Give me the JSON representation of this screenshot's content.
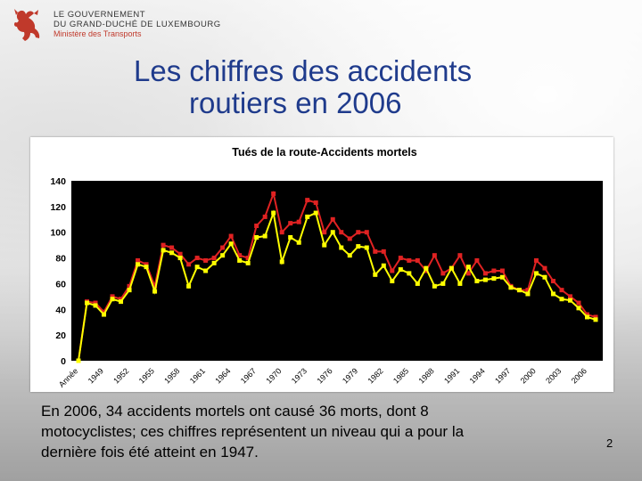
{
  "header": {
    "gov_line1": "LE GOUVERNEMENT",
    "gov_line2": "DU GRAND-DUCHÉ DE LUXEMBOURG",
    "ministry": "Ministère des Transports"
  },
  "slide": {
    "title_line1": "Les chiffres des accidents",
    "title_line2": "routiers en 2006",
    "caption_line1": "En 2006, 34 accidents mortels ont causé 36 morts, dont 8",
    "caption_line2": "motocyclistes; ces chiffres représentent un niveau qui a pour la",
    "caption_line3": "dernière fois été atteint en 1947.",
    "page_number": "2"
  },
  "colors": {
    "title": "#1f3b8c",
    "plot_background": "#000000",
    "killed_series": "#e02222",
    "accidents_series": "#ffff00"
  },
  "chart_data": {
    "type": "line",
    "title": "Tués de la route-Accidents mortels",
    "xlabel": "",
    "ylabel": "",
    "ylim": [
      0,
      140
    ],
    "yticks": [
      0,
      20,
      40,
      60,
      80,
      100,
      120,
      140
    ],
    "first_category_label": "Année",
    "x": [
      1946,
      1947,
      1948,
      1949,
      1950,
      1951,
      1952,
      1953,
      1954,
      1955,
      1956,
      1957,
      1958,
      1959,
      1960,
      1961,
      1962,
      1963,
      1964,
      1965,
      1966,
      1967,
      1968,
      1969,
      1970,
      1971,
      1972,
      1973,
      1974,
      1975,
      1976,
      1977,
      1978,
      1979,
      1980,
      1981,
      1982,
      1983,
      1984,
      1985,
      1986,
      1987,
      1988,
      1989,
      1990,
      1991,
      1992,
      1993,
      1994,
      1995,
      1996,
      1997,
      1998,
      1999,
      2000,
      2001,
      2002,
      2003,
      2004,
      2005,
      2006,
      2007
    ],
    "xtick_labels": [
      "Année",
      "1949",
      "1952",
      "1955",
      "1958",
      "1961",
      "1964",
      "1967",
      "1970",
      "1973",
      "1976",
      "1979",
      "1982",
      "1985",
      "1988",
      "1991",
      "1994",
      "1997",
      "2000",
      "2003",
      "2006"
    ],
    "xtick_years": [
      1946,
      1949,
      1952,
      1955,
      1958,
      1961,
      1964,
      1967,
      1970,
      1973,
      1976,
      1979,
      1982,
      1985,
      1988,
      1991,
      1994,
      1997,
      2000,
      2003,
      2006
    ],
    "grid": false,
    "series": [
      {
        "color": "#e02222",
        "values": [
          0,
          46,
          45,
          38,
          50,
          48,
          58,
          78,
          75,
          58,
          90,
          88,
          83,
          75,
          80,
          78,
          80,
          88,
          97,
          82,
          80,
          105,
          112,
          130,
          100,
          107,
          108,
          125,
          123,
          100,
          110,
          100,
          95,
          100,
          100,
          85,
          85,
          70,
          80,
          78,
          78,
          70,
          82,
          68,
          72,
          82,
          68,
          78,
          68,
          70,
          70,
          58,
          55,
          55,
          78,
          72,
          62,
          55,
          50,
          45,
          36,
          34
        ]
      },
      {
        "color": "#ffff00",
        "values": [
          0,
          45,
          43,
          36,
          48,
          46,
          55,
          75,
          73,
          54,
          86,
          84,
          80,
          58,
          73,
          70,
          76,
          82,
          91,
          78,
          76,
          96,
          97,
          115,
          77,
          96,
          92,
          112,
          115,
          90,
          100,
          88,
          82,
          89,
          88,
          67,
          74,
          62,
          71,
          68,
          60,
          72,
          58,
          60,
          72,
          60,
          73,
          62,
          63,
          64,
          65,
          57,
          55,
          52,
          68,
          65,
          52,
          48,
          47,
          41,
          34,
          32
        ]
      }
    ]
  }
}
